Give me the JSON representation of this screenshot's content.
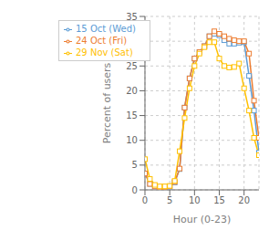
{
  "chart_data": {
    "type": "line",
    "title": "",
    "xlabel": "Hour (0-23)",
    "ylabel": "Percent of users",
    "x": [
      0,
      1,
      2,
      3,
      4,
      5,
      6,
      7,
      8,
      9,
      10,
      11,
      12,
      13,
      14,
      15,
      16,
      17,
      18,
      19,
      20,
      21,
      22,
      23
    ],
    "series": [
      {
        "name": "15 Oct (Wed)",
        "color": "#5b9bd5",
        "values": [
          3.3,
          1.2,
          0.7,
          0.5,
          0.5,
          0.6,
          1.5,
          4.2,
          16.6,
          22.5,
          26.5,
          27.8,
          29.0,
          31.0,
          31.5,
          31.2,
          30.2,
          29.5,
          29.5,
          29.7,
          29.8,
          23.0,
          16.0,
          7.5
        ]
      },
      {
        "name": "24 Oct (Fri)",
        "color": "#ed7d31",
        "values": [
          3.3,
          1.2,
          0.7,
          0.5,
          0.6,
          0.7,
          1.6,
          4.3,
          16.6,
          22.5,
          26.5,
          27.8,
          29.0,
          31.0,
          32.0,
          31.5,
          31.0,
          30.5,
          30.2,
          30.0,
          30.0,
          27.5,
          18.0,
          10.5
        ]
      },
      {
        "name": "29 Nov (Sat)",
        "color": "#ffc000",
        "values": [
          6.2,
          2.2,
          1.0,
          0.7,
          0.7,
          0.8,
          1.8,
          7.8,
          14.5,
          20.5,
          25.0,
          27.5,
          28.8,
          29.8,
          29.8,
          26.5,
          25.0,
          24.7,
          24.8,
          25.5,
          20.5,
          16.0,
          10.5,
          7.0
        ]
      }
    ],
    "xlim": [
      0,
      23
    ],
    "ylim": [
      0,
      35
    ],
    "xticks": [
      0,
      5,
      10,
      15,
      20
    ],
    "yticks": [
      0,
      5,
      10,
      15,
      20,
      25,
      30,
      35
    ],
    "marker": "square",
    "grid": true,
    "legend": "upper left"
  }
}
